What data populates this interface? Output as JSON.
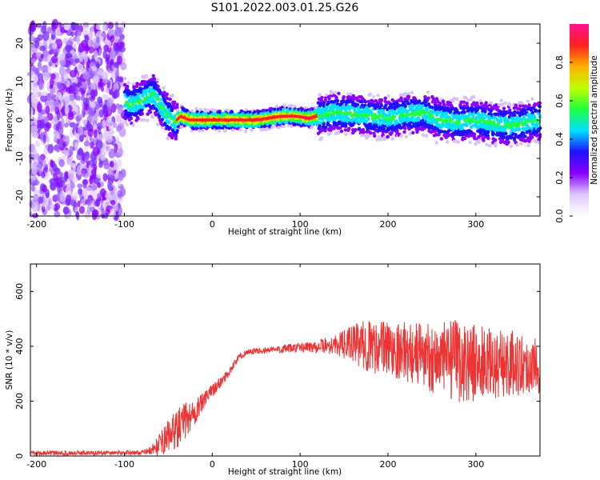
{
  "figure": {
    "title": "S101.2022.003.01.25.G26"
  },
  "chart_data": [
    {
      "type": "heatmap",
      "xlabel": "Height of straight line (km)",
      "ylabel": "Frequency (Hz)",
      "xlim": [
        -207,
        373
      ],
      "ylim": [
        -25,
        25
      ],
      "xticks": [
        -200,
        -100,
        0,
        100,
        200,
        300
      ],
      "yticks": [
        -20,
        -10,
        0,
        10,
        20
      ],
      "ridge": {
        "x": [
          -100,
          -95,
          -85,
          -75,
          -68,
          -60,
          -50,
          -42,
          -35,
          -25,
          0,
          50,
          65,
          80,
          95,
          110,
          120,
          140,
          160,
          180,
          200,
          220,
          240,
          260,
          280,
          300,
          320,
          340,
          360,
          373
        ],
        "y": [
          5,
          4,
          4.5,
          6,
          7,
          4,
          1,
          -0.5,
          1,
          0,
          0,
          0,
          0.5,
          1,
          1,
          0.5,
          1,
          2,
          1.5,
          1,
          0.5,
          1.5,
          2,
          0,
          -0.5,
          0,
          -1,
          -1.5,
          -0.5,
          0
        ]
      },
      "colorbar": {
        "label": "Normalized spectral amplitude",
        "range": [
          0,
          1
        ],
        "ticks": [
          "0.0",
          "0.2",
          "0.4",
          "0.6",
          "0.8"
        ],
        "colors": [
          "#ffffff",
          "#e0c8ff",
          "#8b00ff",
          "#2010ff",
          "#00e0ff",
          "#20ff40",
          "#c0ff00",
          "#ffb000",
          "#ff2020",
          "#ff1090"
        ]
      }
    },
    {
      "type": "line",
      "xlabel": "Height of straight line (km)",
      "ylabel": "SNR (10 * v/v)",
      "xlim": [
        -207,
        373
      ],
      "ylim": [
        0,
        700
      ],
      "xticks": [
        -200,
        -100,
        0,
        100,
        200,
        300
      ],
      "yticks": [
        0,
        200,
        400,
        600
      ],
      "series": [
        {
          "color": "#ee3333",
          "envelope": {
            "x": [
              -207,
              -80,
              -70,
              -60,
              -50,
              -40,
              -30,
              -20,
              -10,
              0,
              10,
              20,
              30,
              40,
              60,
              80,
              100,
              120,
              140,
              160,
              180,
              200,
              220,
              240,
              260,
              280,
              300,
              320,
              340,
              360,
              373
            ],
            "mean": [
              10,
              12,
              20,
              40,
              75,
              100,
              130,
              160,
              200,
              240,
              270,
              310,
              360,
              380,
              385,
              390,
              395,
              400,
              405,
              410,
              400,
              395,
              380,
              370,
              350,
              345,
              340,
              330,
              340,
              330,
              330
            ],
            "noise": [
              8,
              8,
              15,
              40,
              60,
              70,
              70,
              50,
              30,
              25,
              20,
              15,
              12,
              12,
              12,
              15,
              18,
              25,
              35,
              70,
              100,
              100,
              110,
              120,
              140,
              150,
              140,
              130,
              120,
              110,
              100
            ]
          }
        }
      ]
    }
  ]
}
